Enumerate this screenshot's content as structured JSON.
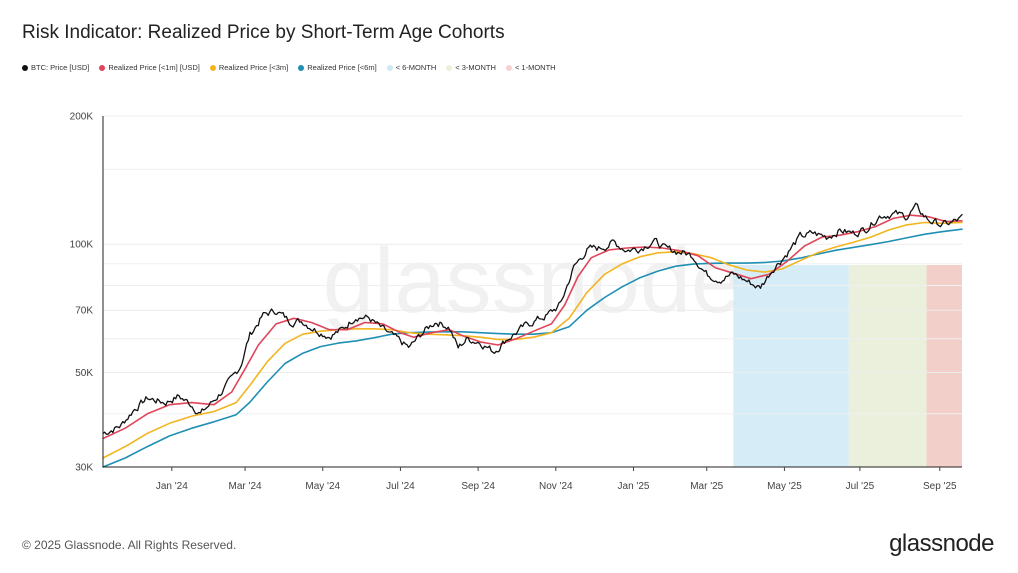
{
  "title": "Risk Indicator: Realized Price by Short-Term Age Cohorts",
  "footer": "© 2025 Glassnode. All Rights Reserved.",
  "brand": "glassnode",
  "watermark": "glassnode",
  "legend": [
    {
      "label": "BTC: Price [USD]",
      "color": "#111111"
    },
    {
      "label": "Realized Price [<1m] [USD]",
      "color": "#e0455a"
    },
    {
      "label": "Realized Price [<3m]",
      "color": "#f2b51f"
    },
    {
      "label": "Realized Price [<6m]",
      "color": "#1f8fb4"
    },
    {
      "label": "< 6-MONTH",
      "color": "#cfe9f4"
    },
    {
      "label": "< 3-MONTH",
      "color": "#ecf0d6"
    },
    {
      "label": "< 1-MONTH",
      "color": "#f6d3d3"
    }
  ],
  "chart_data": {
    "type": "line",
    "y_scale": "log",
    "ylim": [
      30000,
      200000
    ],
    "xlim": [
      0,
      19.35
    ],
    "x_unit": "months since 2023-11-15",
    "y_ticks": [
      {
        "label": "200K",
        "value": 200000
      },
      {
        "label": "100K",
        "value": 100000
      },
      {
        "label": "70K",
        "value": 70000
      },
      {
        "label": "50K",
        "value": 50000
      },
      {
        "label": "30K",
        "value": 30000
      }
    ],
    "x_ticks": [
      {
        "label": "Jan '24",
        "x": 1.55
      },
      {
        "label": "Mar '24",
        "x": 3.2
      },
      {
        "label": "May '24",
        "x": 4.95
      },
      {
        "label": "Jul '24",
        "x": 6.7
      },
      {
        "label": "Sep '24",
        "x": 8.45
      },
      {
        "label": "Nov '24",
        "x": 10.2
      },
      {
        "label": "Jan '25",
        "x": 11.95
      },
      {
        "label": "Mar '25",
        "x": 13.6
      },
      {
        "label": "May '25",
        "x": 15.35
      },
      {
        "label": "Jul '25",
        "x": 17.05
      },
      {
        "label": "Sep '25",
        "x": 18.85
      }
    ],
    "bands": [
      {
        "name": "< 6-MONTH",
        "x0": 14.2,
        "x1": 16.8,
        "color": "#cfe9f4"
      },
      {
        "name": "< 3-MONTH",
        "x0": 16.8,
        "x1": 18.55,
        "color": "#e8edd7"
      },
      {
        "name": "< 1-MONTH",
        "x0": 18.55,
        "x1": 19.35,
        "color": "#f0c8c0"
      }
    ],
    "series": [
      {
        "name": "BTC: Price [USD]",
        "color": "#111111",
        "width": 1.3,
        "jitter": 0.035,
        "points": [
          [
            0,
            36000
          ],
          [
            0.4,
            37500
          ],
          [
            0.7,
            41000
          ],
          [
            1.0,
            43500
          ],
          [
            1.4,
            42500
          ],
          [
            1.7,
            44000
          ],
          [
            2.0,
            42000
          ],
          [
            2.2,
            40000
          ],
          [
            2.5,
            43000
          ],
          [
            2.9,
            48000
          ],
          [
            3.1,
            52000
          ],
          [
            3.3,
            61000
          ],
          [
            3.6,
            68000
          ],
          [
            3.9,
            70000
          ],
          [
            4.2,
            66000
          ],
          [
            4.5,
            66000
          ],
          [
            4.8,
            63000
          ],
          [
            5.1,
            61000
          ],
          [
            5.4,
            63000
          ],
          [
            5.7,
            68000
          ],
          [
            6.0,
            67000
          ],
          [
            6.3,
            63000
          ],
          [
            6.6,
            60000
          ],
          [
            6.9,
            57000
          ],
          [
            7.2,
            62000
          ],
          [
            7.5,
            66000
          ],
          [
            7.8,
            64000
          ],
          [
            8.0,
            57000
          ],
          [
            8.2,
            60000
          ],
          [
            8.5,
            59000
          ],
          [
            8.8,
            56000
          ],
          [
            9.1,
            60000
          ],
          [
            9.4,
            63000
          ],
          [
            9.7,
            66000
          ],
          [
            10.0,
            68000
          ],
          [
            10.3,
            72000
          ],
          [
            10.6,
            88000
          ],
          [
            10.9,
            97000
          ],
          [
            11.2,
            98000
          ],
          [
            11.5,
            101000
          ],
          [
            11.8,
            97000
          ],
          [
            12.1,
            98000
          ],
          [
            12.4,
            102000
          ],
          [
            12.7,
            97000
          ],
          [
            13.0,
            96000
          ],
          [
            13.3,
            94000
          ],
          [
            13.6,
            85000
          ],
          [
            13.9,
            83000
          ],
          [
            14.2,
            85000
          ],
          [
            14.5,
            82000
          ],
          [
            14.8,
            79000
          ],
          [
            15.1,
            88000
          ],
          [
            15.4,
            95000
          ],
          [
            15.7,
            104000
          ],
          [
            16.0,
            106000
          ],
          [
            16.3,
            104000
          ],
          [
            16.6,
            108000
          ],
          [
            16.9,
            106000
          ],
          [
            17.2,
            109000
          ],
          [
            17.5,
            117000
          ],
          [
            17.8,
            118000
          ],
          [
            18.1,
            116000
          ],
          [
            18.3,
            122000
          ],
          [
            18.6,
            114000
          ],
          [
            18.9,
            111000
          ],
          [
            19.1,
            112000
          ],
          [
            19.35,
            115000
          ]
        ]
      },
      {
        "name": "Realized Price [<1m] [USD]",
        "color": "#e0455a",
        "width": 1.6,
        "jitter": 0.0,
        "points": [
          [
            0,
            35000
          ],
          [
            0.5,
            37000
          ],
          [
            1.0,
            40000
          ],
          [
            1.5,
            42000
          ],
          [
            2.0,
            42500
          ],
          [
            2.5,
            42000
          ],
          [
            2.9,
            45000
          ],
          [
            3.2,
            51000
          ],
          [
            3.5,
            58000
          ],
          [
            3.9,
            65000
          ],
          [
            4.3,
            67000
          ],
          [
            4.7,
            65500
          ],
          [
            5.1,
            63000
          ],
          [
            5.5,
            63000
          ],
          [
            5.9,
            65500
          ],
          [
            6.3,
            65000
          ],
          [
            6.7,
            62000
          ],
          [
            7.0,
            60500
          ],
          [
            7.4,
            62000
          ],
          [
            7.8,
            63000
          ],
          [
            8.1,
            61000
          ],
          [
            8.5,
            59000
          ],
          [
            8.9,
            58000
          ],
          [
            9.3,
            60000
          ],
          [
            9.7,
            62500
          ],
          [
            10.1,
            65000
          ],
          [
            10.4,
            72000
          ],
          [
            10.7,
            84000
          ],
          [
            11.0,
            93000
          ],
          [
            11.4,
            97000
          ],
          [
            11.8,
            98000
          ],
          [
            12.2,
            98500
          ],
          [
            12.6,
            98000
          ],
          [
            13.0,
            96500
          ],
          [
            13.4,
            94000
          ],
          [
            13.8,
            88000
          ],
          [
            14.2,
            85500
          ],
          [
            14.6,
            83000
          ],
          [
            15.0,
            85000
          ],
          [
            15.4,
            91000
          ],
          [
            15.8,
            99000
          ],
          [
            16.2,
            104000
          ],
          [
            16.6,
            105000
          ],
          [
            17.0,
            107000
          ],
          [
            17.4,
            110000
          ],
          [
            17.8,
            115000
          ],
          [
            18.2,
            117000
          ],
          [
            18.6,
            116000
          ],
          [
            19.0,
            113000
          ],
          [
            19.35,
            113500
          ]
        ]
      },
      {
        "name": "Realized Price [<3m]",
        "color": "#f2b51f",
        "width": 1.6,
        "jitter": 0.0,
        "points": [
          [
            0,
            31500
          ],
          [
            0.5,
            33500
          ],
          [
            1.0,
            36000
          ],
          [
            1.5,
            38000
          ],
          [
            2.0,
            39500
          ],
          [
            2.5,
            40500
          ],
          [
            3.0,
            42500
          ],
          [
            3.3,
            46500
          ],
          [
            3.7,
            53000
          ],
          [
            4.1,
            58500
          ],
          [
            4.5,
            61500
          ],
          [
            4.9,
            62500
          ],
          [
            5.3,
            63000
          ],
          [
            5.7,
            63300
          ],
          [
            6.1,
            63300
          ],
          [
            6.5,
            63000
          ],
          [
            6.9,
            62000
          ],
          [
            7.3,
            61500
          ],
          [
            7.7,
            61300
          ],
          [
            8.1,
            61000
          ],
          [
            8.5,
            60500
          ],
          [
            8.9,
            59800
          ],
          [
            9.3,
            59800
          ],
          [
            9.7,
            60500
          ],
          [
            10.1,
            62000
          ],
          [
            10.5,
            67000
          ],
          [
            10.9,
            77000
          ],
          [
            11.3,
            85000
          ],
          [
            11.7,
            90000
          ],
          [
            12.1,
            93500
          ],
          [
            12.5,
            95500
          ],
          [
            12.9,
            96000
          ],
          [
            13.3,
            95000
          ],
          [
            13.7,
            93000
          ],
          [
            14.1,
            89500
          ],
          [
            14.5,
            87000
          ],
          [
            14.9,
            86000
          ],
          [
            15.3,
            87500
          ],
          [
            15.7,
            91500
          ],
          [
            16.1,
            95500
          ],
          [
            16.5,
            98500
          ],
          [
            16.9,
            101000
          ],
          [
            17.3,
            104000
          ],
          [
            17.7,
            108000
          ],
          [
            18.1,
            111000
          ],
          [
            18.5,
            112500
          ],
          [
            18.9,
            112000
          ],
          [
            19.35,
            112500
          ]
        ]
      },
      {
        "name": "Realized Price [<6m]",
        "color": "#1f8fb4",
        "width": 1.6,
        "jitter": 0.0,
        "points": [
          [
            0,
            30000
          ],
          [
            0.5,
            31500
          ],
          [
            1.0,
            33500
          ],
          [
            1.5,
            35500
          ],
          [
            2.0,
            37000
          ],
          [
            2.5,
            38300
          ],
          [
            3.0,
            39800
          ],
          [
            3.3,
            42500
          ],
          [
            3.7,
            47500
          ],
          [
            4.1,
            52500
          ],
          [
            4.5,
            55500
          ],
          [
            4.9,
            57500
          ],
          [
            5.3,
            58600
          ],
          [
            5.7,
            59300
          ],
          [
            6.1,
            60300
          ],
          [
            6.5,
            61500
          ],
          [
            6.9,
            62000
          ],
          [
            7.3,
            62200
          ],
          [
            7.7,
            62300
          ],
          [
            8.1,
            62300
          ],
          [
            8.5,
            62000
          ],
          [
            8.9,
            61700
          ],
          [
            9.3,
            61500
          ],
          [
            9.7,
            61500
          ],
          [
            10.1,
            62000
          ],
          [
            10.5,
            64000
          ],
          [
            10.9,
            70000
          ],
          [
            11.3,
            75000
          ],
          [
            11.7,
            79500
          ],
          [
            12.1,
            83500
          ],
          [
            12.5,
            86500
          ],
          [
            12.9,
            88800
          ],
          [
            13.3,
            89800
          ],
          [
            13.7,
            90200
          ],
          [
            14.1,
            90300
          ],
          [
            14.5,
            90300
          ],
          [
            14.9,
            90600
          ],
          [
            15.3,
            91300
          ],
          [
            15.7,
            92800
          ],
          [
            16.1,
            94800
          ],
          [
            16.5,
            96800
          ],
          [
            16.9,
            98300
          ],
          [
            17.3,
            99800
          ],
          [
            17.7,
            101500
          ],
          [
            18.1,
            103500
          ],
          [
            18.5,
            105500
          ],
          [
            18.9,
            107000
          ],
          [
            19.35,
            108500
          ]
        ]
      }
    ]
  }
}
